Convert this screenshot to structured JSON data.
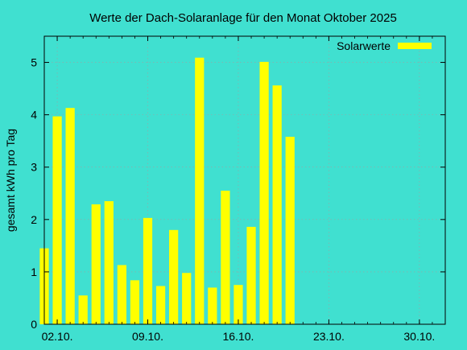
{
  "chart_data": {
    "type": "bar",
    "title": "Werte der Dach-Solaranlage für den Monat Oktober 2025",
    "ylabel": "gesamt kWh pro Tag",
    "xlabel": "",
    "x_range": [
      "2025-10-01",
      "2025-11-01"
    ],
    "ylim": [
      0,
      5.5
    ],
    "y_ticks": [
      0,
      1,
      2,
      3,
      4,
      5
    ],
    "x_ticks": [
      {
        "date": "2025-10-02",
        "label": "02.10."
      },
      {
        "date": "2025-10-09",
        "label": "09.10."
      },
      {
        "date": "2025-10-16",
        "label": "16.10."
      },
      {
        "date": "2025-10-23",
        "label": "23.10."
      },
      {
        "date": "2025-10-30",
        "label": "30.10."
      }
    ],
    "grid": true,
    "legend_position": "top-right",
    "series": [
      {
        "name": "Solarwerte",
        "color": "#ffff00",
        "points": [
          {
            "date": "2025-10-01",
            "value": 1.45
          },
          {
            "date": "2025-10-02",
            "value": 3.97
          },
          {
            "date": "2025-10-03",
            "value": 4.13
          },
          {
            "date": "2025-10-04",
            "value": 0.55
          },
          {
            "date": "2025-10-05",
            "value": 2.29
          },
          {
            "date": "2025-10-06",
            "value": 2.35
          },
          {
            "date": "2025-10-07",
            "value": 1.13
          },
          {
            "date": "2025-10-08",
            "value": 0.84
          },
          {
            "date": "2025-10-09",
            "value": 2.03
          },
          {
            "date": "2025-10-10",
            "value": 0.73
          },
          {
            "date": "2025-10-11",
            "value": 1.8
          },
          {
            "date": "2025-10-12",
            "value": 0.98
          },
          {
            "date": "2025-10-13",
            "value": 5.09
          },
          {
            "date": "2025-10-14",
            "value": 0.7
          },
          {
            "date": "2025-10-15",
            "value": 2.55
          },
          {
            "date": "2025-10-16",
            "value": 0.75
          },
          {
            "date": "2025-10-17",
            "value": 1.86
          },
          {
            "date": "2025-10-18",
            "value": 5.01
          },
          {
            "date": "2025-10-19",
            "value": 4.56
          },
          {
            "date": "2025-10-20",
            "value": 3.58
          }
        ]
      }
    ]
  }
}
